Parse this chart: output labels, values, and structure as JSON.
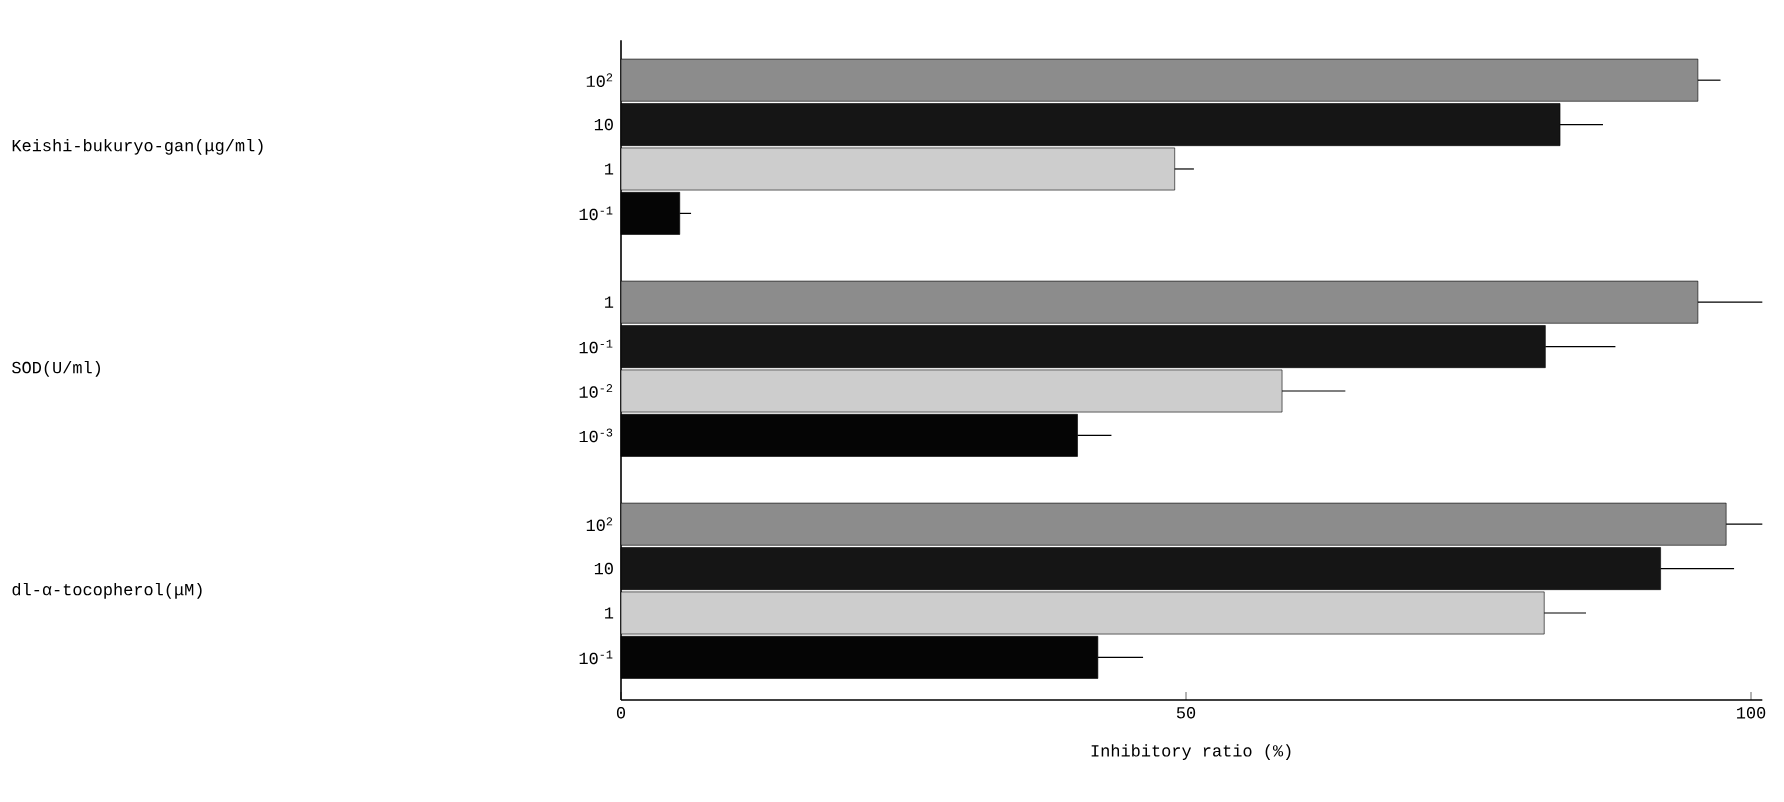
{
  "chart_data": {
    "type": "bar",
    "orientation": "horizontal",
    "xlabel": "Inhibitory ratio (%)",
    "categories": [
      "10$^{2}$",
      "10",
      "1",
      "10$^{-1}$",
      null,
      "1",
      "10$^{-1}$",
      "10$^{-2}$",
      "10$^{-3}$",
      null,
      "10$^{2}$",
      "10",
      "1",
      "10$^{-1}$"
    ],
    "values": [
      95.3,
      83.1,
      49.0,
      5.2,
      null,
      95.3,
      81.8,
      58.5,
      40.4,
      null,
      97.8,
      92.0,
      81.7,
      42.2
    ],
    "errors": [
      [
        95.3,
        97.3
      ],
      [
        83.1,
        86.9
      ],
      [
        49.0,
        50.7
      ],
      [
        5.2,
        6.2
      ],
      null,
      [
        95.3,
        101
      ],
      [
        81.8,
        88.0
      ],
      [
        58.5,
        64.1
      ],
      [
        40.4,
        43.4
      ],
      null,
      [
        97.8,
        101
      ],
      [
        92.0,
        98.5
      ],
      [
        81.7,
        85.4
      ],
      [
        42.2,
        46.2
      ]
    ],
    "colors": [
      "#8c8c8c",
      "#151515",
      "#cdcdcd",
      "#050505",
      null,
      "#8c8c8c",
      "#151515",
      "#cdcdcd",
      "#050505",
      null,
      "#8c8c8c",
      "#151515",
      "#cdcdcd",
      "#050505"
    ],
    "annotations": [
      "Keishi-bukuryo-gan(μg/ml)",
      "SOD(U/ml)",
      "dl-α-tocopherol(μM)"
    ],
    "xlim": [
      0,
      101
    ],
    "xticks": [
      0,
      50,
      100
    ],
    "grid": false
  }
}
